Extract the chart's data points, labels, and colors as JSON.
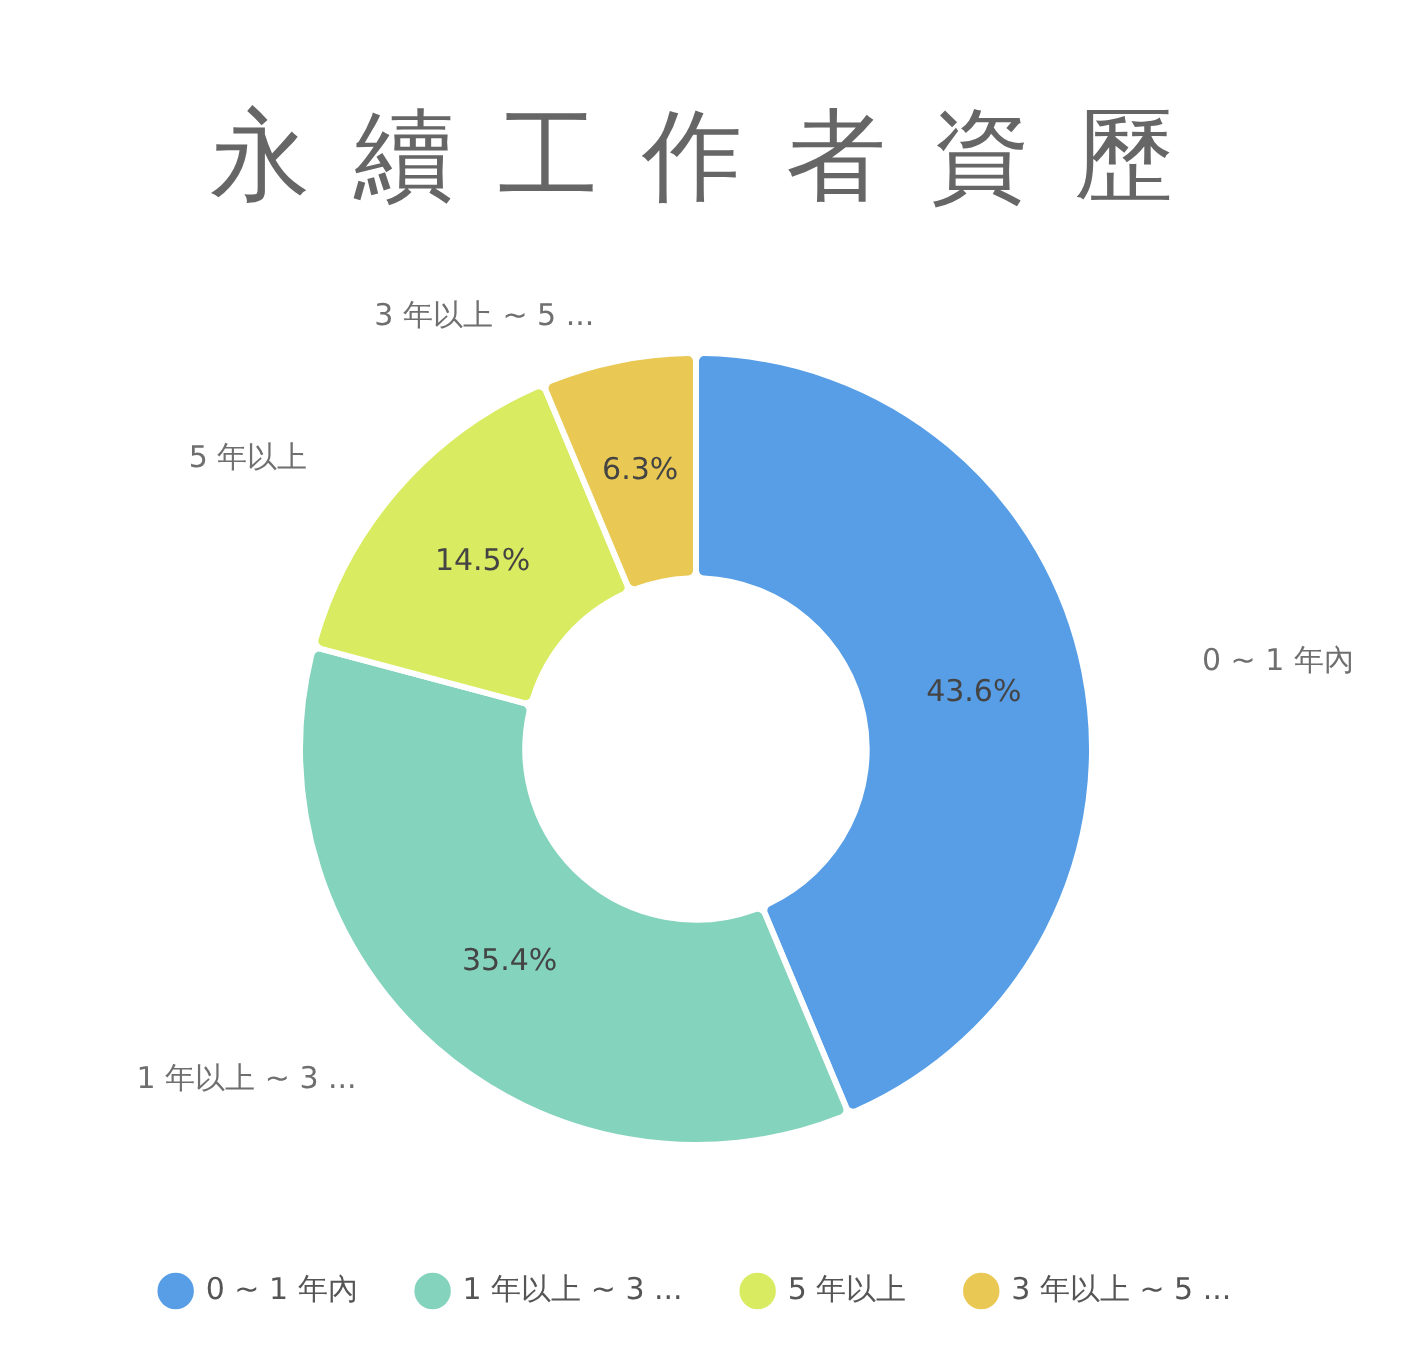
{
  "chart_data": {
    "type": "donut",
    "title": "永續工作者資歷",
    "categories": [
      "0 ~ 1 年內",
      "1 年以上 ~ 3 ...",
      "5 年以上",
      "3 年以上 ~ 5 ..."
    ],
    "values": [
      43.6,
      35.4,
      14.5,
      6.3
    ],
    "colors": [
      "#579ee6",
      "#84d3bd",
      "#d9eb60",
      "#e9c853"
    ],
    "value_labels": [
      "43.6%",
      "35.4%",
      "14.5%",
      "6.3%"
    ],
    "legend": "bottom"
  }
}
